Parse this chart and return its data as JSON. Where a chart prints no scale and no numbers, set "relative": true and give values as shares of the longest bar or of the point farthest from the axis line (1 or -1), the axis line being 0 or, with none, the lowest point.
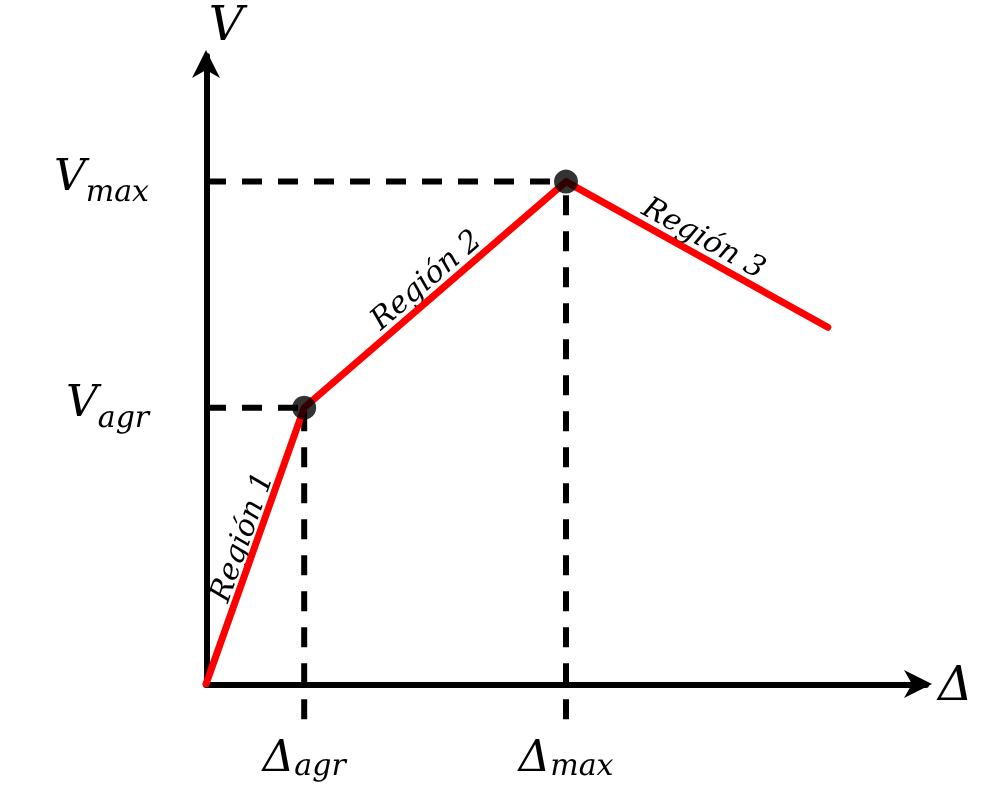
{
  "chart_data": {
    "type": "line",
    "xlabel": "Δ",
    "ylabel": "V",
    "relative": true,
    "categories": [
      null,
      null,
      null,
      "Δ$_{agr}$",
      null,
      null,
      null,
      null,
      null,
      null,
      null,
      "Δ$_{max}$",
      null,
      null,
      null,
      null,
      null,
      null,
      null,
      null,
      null,
      null,
      null
    ],
    "series": [
      {
        "color": "#ff0000",
        "values": [
          0,
          null,
          null,
          0.55,
          null,
          null,
          null,
          null,
          null,
          null,
          null,
          1,
          null,
          null,
          null,
          null,
          null,
          null,
          null,
          0.71,
          null,
          null,
          null
        ],
        "marker": "none"
      },
      {
        "type": "scatter",
        "color": "#000000",
        "x": [
          "Δ$_{agr}$",
          "Δ$_{max}$"
        ],
        "values": [
          0.55,
          1
        ],
        "marker": "circle"
      }
    ],
    "ref_lines": [
      {
        "axis": "y",
        "value": 0.55,
        "label": "V$_{agr}$",
        "color": "#000000",
        "line_style": "dashed"
      },
      {
        "axis": "y",
        "value": 1,
        "label": "V$_{max}$",
        "color": "#000000",
        "line_style": "dashed"
      },
      {
        "axis": "x",
        "value": "Δ$_{agr}$",
        "color": "#000000",
        "line_style": "dashed"
      },
      {
        "axis": "x",
        "value": "Δ$_{max}$",
        "color": "#000000",
        "line_style": "dashed"
      }
    ],
    "annotations": [
      "Región 1",
      "Región 2",
      "Región 3"
    ],
    "grid": false
  }
}
